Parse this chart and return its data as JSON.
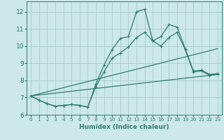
{
  "xlabel": "Humidex (Indice chaleur)",
  "bg_color": "#cce8e8",
  "grid_color": "#a8cccc",
  "line_color": "#2e7d72",
  "xlim": [
    -0.5,
    23.5
  ],
  "ylim": [
    6,
    12.6
  ],
  "yticks": [
    6,
    7,
    8,
    9,
    10,
    11,
    12
  ],
  "xticks": [
    0,
    1,
    2,
    3,
    4,
    5,
    6,
    7,
    8,
    9,
    10,
    11,
    12,
    13,
    14,
    15,
    16,
    17,
    18,
    19,
    20,
    21,
    22,
    23
  ],
  "lines": [
    {
      "x": [
        0,
        1,
        2,
        3,
        4,
        5,
        6,
        7,
        8,
        9,
        10,
        11,
        12,
        13,
        14,
        15,
        16,
        17,
        18,
        19,
        20,
        21,
        22,
        23
      ],
      "y": [
        7.1,
        6.85,
        6.65,
        6.5,
        6.55,
        6.6,
        6.55,
        6.45,
        7.8,
        8.9,
        9.8,
        10.45,
        10.55,
        12.0,
        12.15,
        10.3,
        10.55,
        11.25,
        11.1,
        9.85,
        8.55,
        8.6,
        8.35,
        8.4
      ],
      "marker": true
    },
    {
      "x": [
        0,
        1,
        2,
        3,
        4,
        5,
        6,
        7,
        8,
        9,
        10,
        11,
        12,
        13,
        14,
        15,
        16,
        17,
        18,
        19,
        20,
        21,
        22,
        23
      ],
      "y": [
        7.1,
        6.85,
        6.65,
        6.5,
        6.55,
        6.6,
        6.55,
        6.45,
        7.65,
        8.5,
        9.3,
        9.6,
        9.95,
        10.5,
        10.8,
        10.3,
        10.0,
        10.5,
        10.8,
        9.8,
        8.5,
        8.55,
        8.3,
        8.35
      ],
      "marker": true
    },
    {
      "x": [
        0,
        23
      ],
      "y": [
        7.1,
        9.85
      ],
      "marker": false
    },
    {
      "x": [
        0,
        23
      ],
      "y": [
        7.1,
        8.35
      ],
      "marker": false
    }
  ],
  "markersize": 3.5,
  "linewidth": 0.9,
  "xlabel_fontsize": 6.5,
  "tick_fontsize_x": 5.2,
  "tick_fontsize_y": 6.5
}
